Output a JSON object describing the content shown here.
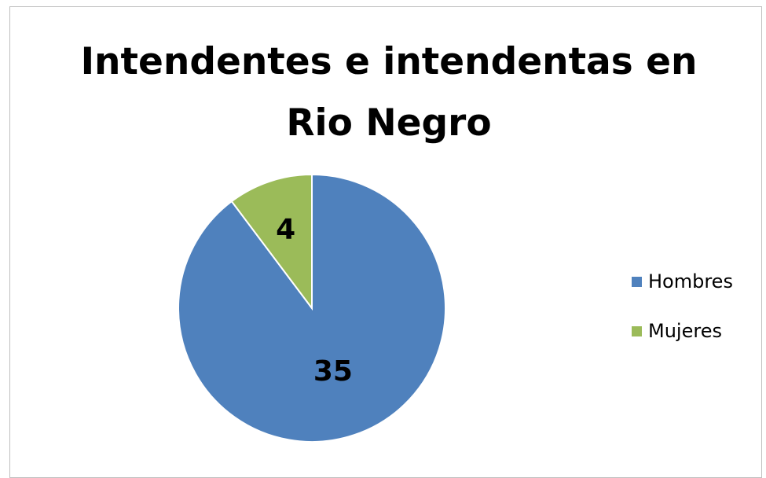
{
  "chart_data": {
    "type": "pie",
    "title": "Intendentes e intendentas en Rio Negro",
    "title_lines": [
      "Intendentes e intendentas en",
      "Rio Negro"
    ],
    "categories": [
      "Hombres",
      "Mujeres"
    ],
    "values": [
      35,
      4
    ],
    "data_labels": [
      "35",
      "4"
    ],
    "colors": [
      "#4f81bd",
      "#9bbb59"
    ],
    "legend_position": "right",
    "slice_border_color": "#ffffff"
  }
}
